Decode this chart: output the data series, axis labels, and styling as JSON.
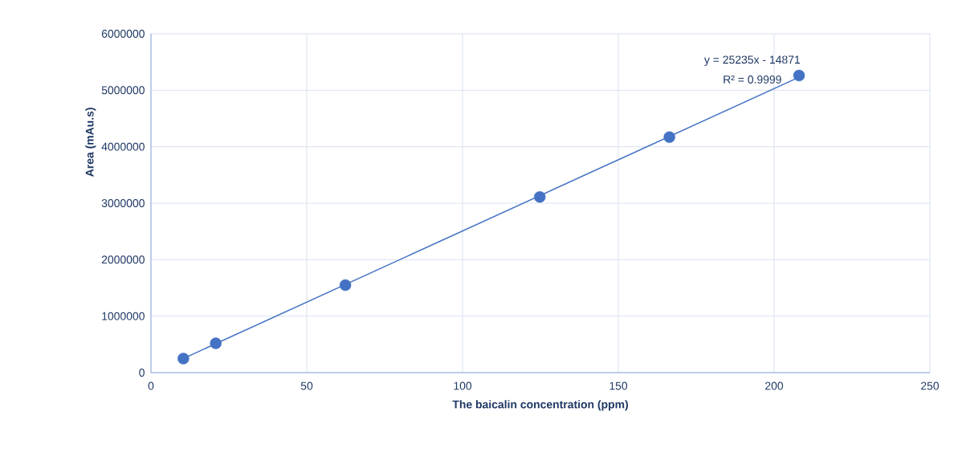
{
  "chart_data": {
    "type": "scatter",
    "xlabel": "The baicalin concentration (ppm)",
    "ylabel": "Area (mAu.s)",
    "xlim": [
      0,
      250
    ],
    "xticks": [
      0,
      50,
      100,
      150,
      200,
      250
    ],
    "ylim": [
      0,
      6000000
    ],
    "yticks": [
      0,
      1000000,
      2000000,
      3000000,
      4000000,
      5000000,
      6000000
    ],
    "grid": true,
    "series": [
      {
        "marker": "circle",
        "color": "#4472c4",
        "x": [
          10.4,
          20.8,
          62.4,
          124.8,
          166.4,
          208
        ],
        "values": [
          250000,
          520000,
          1550000,
          3110000,
          4170000,
          5260000
        ]
      },
      {
        "type": "line",
        "marker": "none",
        "line_style": "solid",
        "color": "#4472c4",
        "x": [
          10.4,
          208
        ],
        "values": [
          250000,
          5230000
        ]
      }
    ],
    "annotations": [
      "y = 25235x - 14871",
      "R² = 0.9999"
    ]
  }
}
